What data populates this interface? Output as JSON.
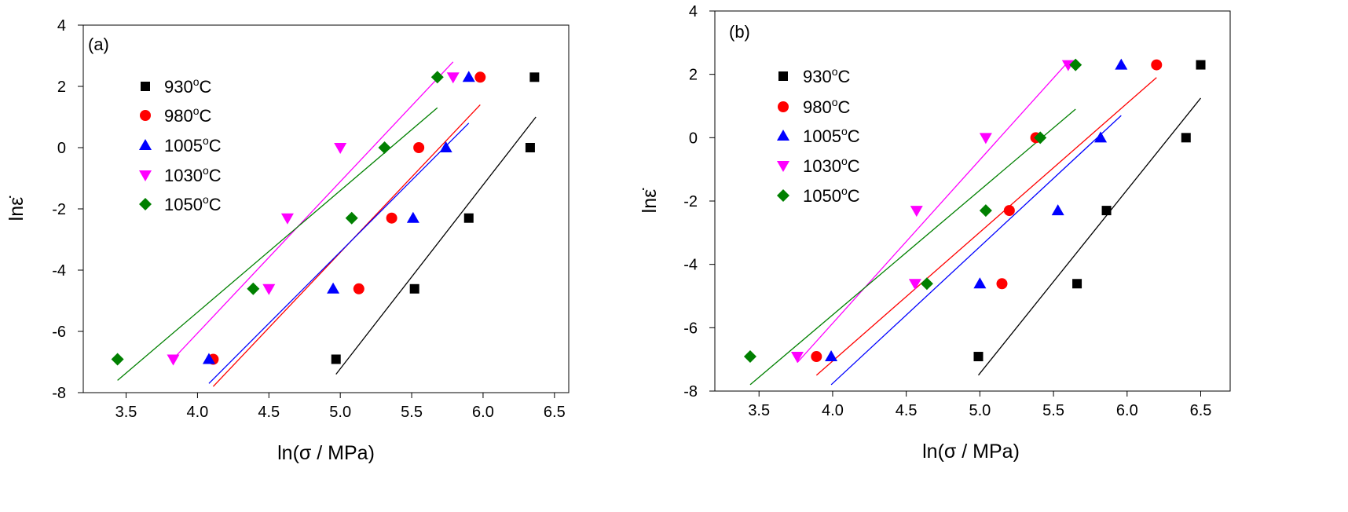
{
  "chart_data": [
    {
      "type": "scatter",
      "panel_label": "(a)",
      "xlabel": "ln(σ / MPa)",
      "ylabel": "lnε̇",
      "xlim": [
        3.2,
        6.6
      ],
      "ylim": [
        -8,
        4
      ],
      "xticks": [
        "3.5",
        "4.0",
        "4.5",
        "5.0",
        "5.5",
        "6.0",
        "6.5"
      ],
      "yticks": [
        "-8",
        "-6",
        "-4",
        "-2",
        "0",
        "2",
        "4"
      ],
      "legend_position": "upper-left",
      "series": [
        {
          "name": "930",
          "unit": "oC",
          "marker": "square",
          "color": "#000000",
          "x": [
            4.97,
            5.52,
            5.9,
            6.33,
            6.36
          ],
          "y": [
            -6.91,
            -4.61,
            -2.3,
            0.0,
            2.3
          ],
          "fit": {
            "x": [
              4.97,
              6.37
            ],
            "y": [
              -7.4,
              1.0
            ]
          }
        },
        {
          "name": "980",
          "unit": "oC",
          "marker": "circle",
          "color": "#ff0000",
          "x": [
            4.11,
            5.13,
            5.36,
            5.55,
            5.98
          ],
          "y": [
            -6.91,
            -4.61,
            -2.3,
            0.0,
            2.3
          ],
          "fit": {
            "x": [
              4.11,
              5.98
            ],
            "y": [
              -7.8,
              1.4
            ]
          }
        },
        {
          "name": "1005",
          "unit": "oC",
          "marker": "triangle-up",
          "color": "#0000ff",
          "x": [
            4.08,
            4.95,
            5.51,
            5.74,
            5.9
          ],
          "y": [
            -6.91,
            -4.61,
            -2.3,
            0.0,
            2.3
          ],
          "fit": {
            "x": [
              4.08,
              5.9
            ],
            "y": [
              -7.7,
              0.8
            ]
          }
        },
        {
          "name": "1030",
          "unit": "oC",
          "marker": "triangle-down",
          "color": "#ff00ff",
          "x": [
            3.83,
            4.5,
            4.63,
            5.0,
            5.79
          ],
          "y": [
            -6.91,
            -4.61,
            -2.3,
            0.0,
            2.3
          ],
          "fit": {
            "x": [
              3.83,
              5.79
            ],
            "y": [
              -6.9,
              2.8
            ]
          }
        },
        {
          "name": "1050",
          "unit": "oC",
          "marker": "diamond",
          "color": "#008000",
          "x": [
            3.44,
            4.39,
            5.08,
            5.31,
            5.68
          ],
          "y": [
            -6.91,
            -4.61,
            -2.3,
            0.0,
            2.3
          ],
          "fit": {
            "x": [
              3.44,
              5.68
            ],
            "y": [
              -7.6,
              1.3
            ]
          }
        }
      ]
    },
    {
      "type": "scatter",
      "panel_label": "(b)",
      "xlabel": "ln(σ / MPa)",
      "ylabel": "lnε̇",
      "xlim": [
        3.2,
        6.7
      ],
      "ylim": [
        -8,
        4
      ],
      "xticks": [
        "3.5",
        "4.0",
        "4.5",
        "5.0",
        "5.5",
        "6.0",
        "6.5"
      ],
      "yticks": [
        "-8",
        "-6",
        "-4",
        "-2",
        "0",
        "2",
        "4"
      ],
      "legend_position": "upper-left",
      "series": [
        {
          "name": "930",
          "unit": "oC",
          "marker": "square",
          "color": "#000000",
          "x": [
            4.99,
            5.66,
            5.86,
            6.4,
            6.5
          ],
          "y": [
            -6.91,
            -4.61,
            -2.3,
            0.0,
            2.3
          ],
          "fit": {
            "x": [
              4.99,
              6.5
            ],
            "y": [
              -7.5,
              1.25
            ]
          }
        },
        {
          "name": "980",
          "unit": "oC",
          "marker": "circle",
          "color": "#ff0000",
          "x": [
            3.89,
            5.15,
            5.2,
            5.38,
            6.2
          ],
          "y": [
            -6.91,
            -4.61,
            -2.3,
            0.0,
            2.3
          ],
          "fit": {
            "x": [
              3.89,
              6.2
            ],
            "y": [
              -7.5,
              1.9
            ]
          }
        },
        {
          "name": "1005",
          "unit": "oC",
          "marker": "triangle-up",
          "color": "#0000ff",
          "x": [
            3.99,
            5.0,
            5.53,
            5.82,
            5.96
          ],
          "y": [
            -6.91,
            -4.61,
            -2.3,
            0.0,
            2.3
          ],
          "fit": {
            "x": [
              3.99,
              5.96
            ],
            "y": [
              -7.8,
              0.7
            ]
          }
        },
        {
          "name": "1030",
          "unit": "oC",
          "marker": "triangle-down",
          "color": "#ff00ff",
          "x": [
            3.76,
            4.56,
            4.57,
            5.04,
            5.6
          ],
          "y": [
            -6.91,
            -4.61,
            -2.3,
            0.0,
            2.3
          ],
          "fit": {
            "x": [
              3.76,
              5.6
            ],
            "y": [
              -7.1,
              2.4
            ]
          }
        },
        {
          "name": "1050",
          "unit": "oC",
          "marker": "diamond",
          "color": "#008000",
          "x": [
            3.44,
            4.64,
            5.04,
            5.41,
            5.65
          ],
          "y": [
            -6.91,
            -4.61,
            -2.3,
            0.0,
            2.3
          ],
          "fit": {
            "x": [
              3.44,
              5.65
            ],
            "y": [
              -7.8,
              0.9
            ]
          }
        }
      ]
    }
  ]
}
